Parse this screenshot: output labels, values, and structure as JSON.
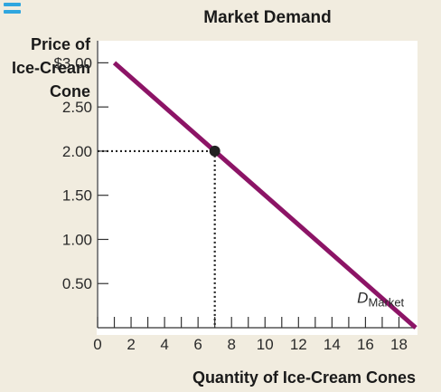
{
  "menu": {
    "icon": "menu-icon",
    "color": "#2fa6df"
  },
  "chart_data": {
    "type": "line",
    "title": "Market Demand",
    "ylabel_lines": [
      "Price of",
      "Ice-Cream",
      "Cone"
    ],
    "xlabel": "Quantity of Ice-Cream Cones",
    "xlim": [
      0,
      19
    ],
    "ylim": [
      0,
      3.25
    ],
    "x_ticks": [
      0,
      1,
      2,
      3,
      4,
      5,
      6,
      7,
      8,
      9,
      10,
      11,
      12,
      13,
      14,
      15,
      16,
      17,
      18
    ],
    "x_tick_labels": [
      {
        "x": 0,
        "label": "0"
      },
      {
        "x": 2,
        "label": "2"
      },
      {
        "x": 4,
        "label": "4"
      },
      {
        "x": 6,
        "label": "6"
      },
      {
        "x": 8,
        "label": "8"
      },
      {
        "x": 10,
        "label": "10"
      },
      {
        "x": 12,
        "label": "12"
      },
      {
        "x": 14,
        "label": "14"
      },
      {
        "x": 16,
        "label": "16"
      },
      {
        "x": 18,
        "label": "18"
      }
    ],
    "y_ticks": [
      {
        "y": 3.0,
        "label": "$3.00"
      },
      {
        "y": 2.5,
        "label": "2.50"
      },
      {
        "y": 2.0,
        "label": "2.00"
      },
      {
        "y": 1.5,
        "label": "1.50"
      },
      {
        "y": 1.0,
        "label": "1.00"
      },
      {
        "y": 0.5,
        "label": "0.50"
      }
    ],
    "series": [
      {
        "name": "D",
        "name_subscript": "Market",
        "color": "#8c1466",
        "points": [
          [
            1,
            3.0
          ],
          [
            19,
            0.0
          ]
        ]
      }
    ],
    "highlight": {
      "x": 7,
      "y": 2.0,
      "guide_lines": "dotted"
    },
    "grid": false
  }
}
